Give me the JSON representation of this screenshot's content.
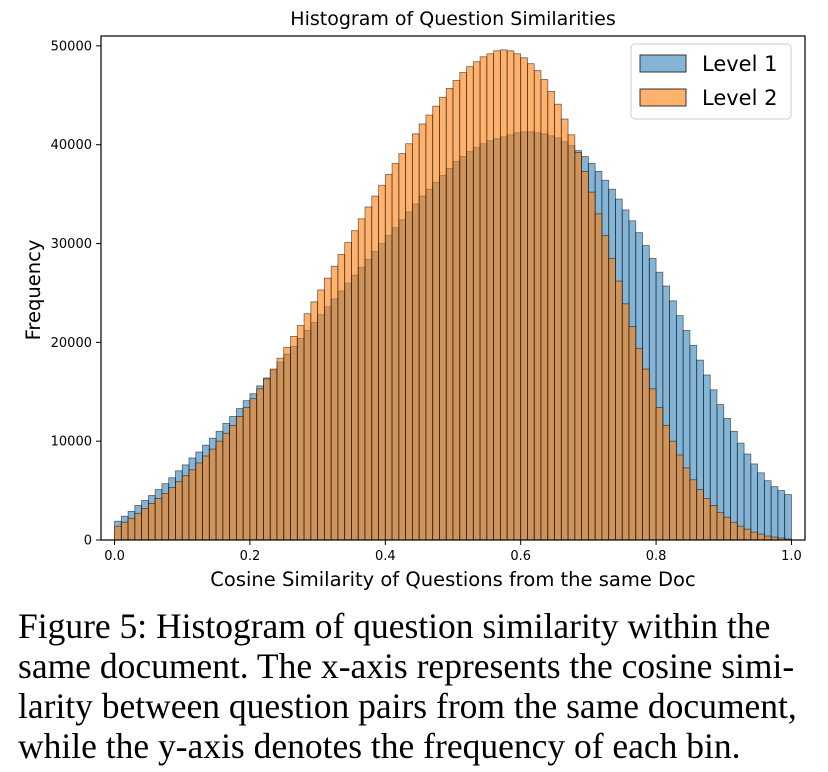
{
  "chart_data": {
    "type": "bar",
    "title": "Histogram of Question Similarities",
    "xlabel": "Cosine Similarity of Questions from the same Doc",
    "ylabel": "Frequency",
    "xlim": [
      -0.02,
      1.02
    ],
    "ylim": [
      0,
      51000
    ],
    "bin_count": 100,
    "bin_range": [
      0,
      1
    ],
    "x_ticks": [
      "0.0",
      "0.2",
      "0.4",
      "0.6",
      "0.8",
      "1.0"
    ],
    "y_ticks": [
      "0",
      "10000",
      "20000",
      "30000",
      "40000",
      "50000"
    ],
    "legend_position": "top-right",
    "grid": false,
    "series": [
      {
        "name": "Level 1",
        "color": "#1f77b4",
        "values": [
          1900,
          2400,
          2900,
          3500,
          4000,
          4500,
          5100,
          5700,
          6300,
          7000,
          7600,
          8300,
          8900,
          9600,
          10300,
          11000,
          11800,
          12500,
          13300,
          14100,
          14800,
          15600,
          16400,
          17200,
          18000,
          18800,
          19600,
          20400,
          21200,
          22000,
          22800,
          23600,
          24400,
          25200,
          26000,
          26800,
          27600,
          28400,
          29200,
          30000,
          30800,
          31600,
          32400,
          33200,
          34000,
          34800,
          35500,
          36200,
          36900,
          37600,
          38300,
          38800,
          39300,
          39700,
          40100,
          40400,
          40600,
          40800,
          41000,
          41200,
          41300,
          41300,
          41200,
          41100,
          40900,
          40700,
          40300,
          39900,
          39400,
          38800,
          38100,
          37300,
          36400,
          35500,
          34500,
          33400,
          32300,
          31100,
          29800,
          28500,
          27100,
          25700,
          24200,
          22700,
          21200,
          19700,
          18200,
          16700,
          15200,
          13700,
          12300,
          11000,
          9800,
          8700,
          7700,
          6800,
          6000,
          5400,
          5000,
          4600
        ]
      },
      {
        "name": "Level 2",
        "color": "#ff7f0e",
        "values": [
          1400,
          1800,
          2200,
          2700,
          3200,
          3700,
          4200,
          4700,
          5300,
          5900,
          6500,
          7100,
          7800,
          8500,
          9200,
          10000,
          10800,
          11600,
          12500,
          13400,
          14300,
          15300,
          16300,
          17300,
          18400,
          19500,
          20600,
          21700,
          22900,
          24100,
          25300,
          26500,
          27700,
          28900,
          30100,
          31300,
          32500,
          33700,
          34800,
          35900,
          37000,
          38100,
          39100,
          40100,
          41100,
          42100,
          43000,
          43900,
          44800,
          45700,
          46500,
          47300,
          47900,
          48400,
          48900,
          49200,
          49500,
          49600,
          49500,
          49200,
          48800,
          48200,
          47500,
          46600,
          45400,
          44100,
          42600,
          41000,
          39200,
          37300,
          35200,
          33000,
          30800,
          28500,
          26200,
          23900,
          21600,
          19400,
          17300,
          15300,
          13400,
          11600,
          10000,
          8600,
          7300,
          6100,
          5100,
          4200,
          3500,
          2800,
          2300,
          1800,
          1400,
          1100,
          800,
          600,
          400,
          300,
          200,
          100
        ]
      }
    ]
  },
  "caption": {
    "lines": [
      "Figure 5: Histogram of question similarity within the",
      "same document. The x-axis represents the cosine simi-",
      "larity between question pairs from the same document,",
      "while the y-axis denotes the frequency of each bin."
    ]
  }
}
